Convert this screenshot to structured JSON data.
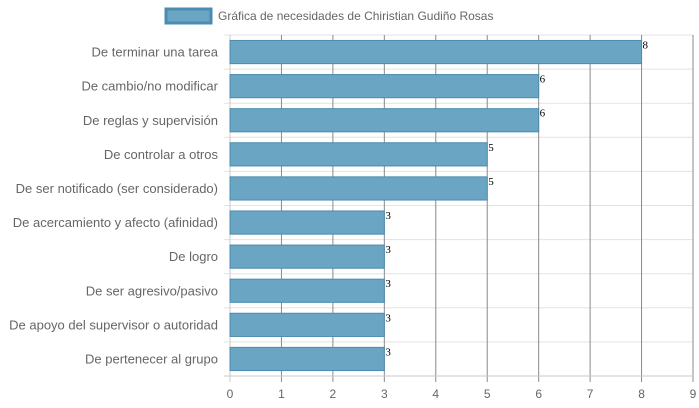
{
  "chart_data": {
    "type": "bar",
    "orientation": "horizontal",
    "categories": [
      "De terminar una tarea",
      "De cambio/no modificar",
      "De reglas y supervisión",
      "De controlar a otros",
      "De ser notificado (ser considerado)",
      "De acercamiento y afecto (afinidad)",
      "De logro",
      "De ser agresivo/pasivo",
      "De apoyo del supervisor o autoridad",
      "De pertenecer al grupo"
    ],
    "series": [
      {
        "name": "Gráfica de necesidades de Chiristian Gudiño Rosas",
        "values": [
          8,
          6,
          6,
          5,
          5,
          3,
          3,
          3,
          3,
          3
        ],
        "color": "#6aa5c4",
        "border_color": "#4b8cb0"
      }
    ],
    "xlim": [
      0,
      9
    ],
    "x_ticks": [
      0,
      1,
      2,
      3,
      4,
      5,
      6,
      7,
      8,
      9
    ],
    "grid": true,
    "legend_position": "top",
    "data_labels": true
  }
}
